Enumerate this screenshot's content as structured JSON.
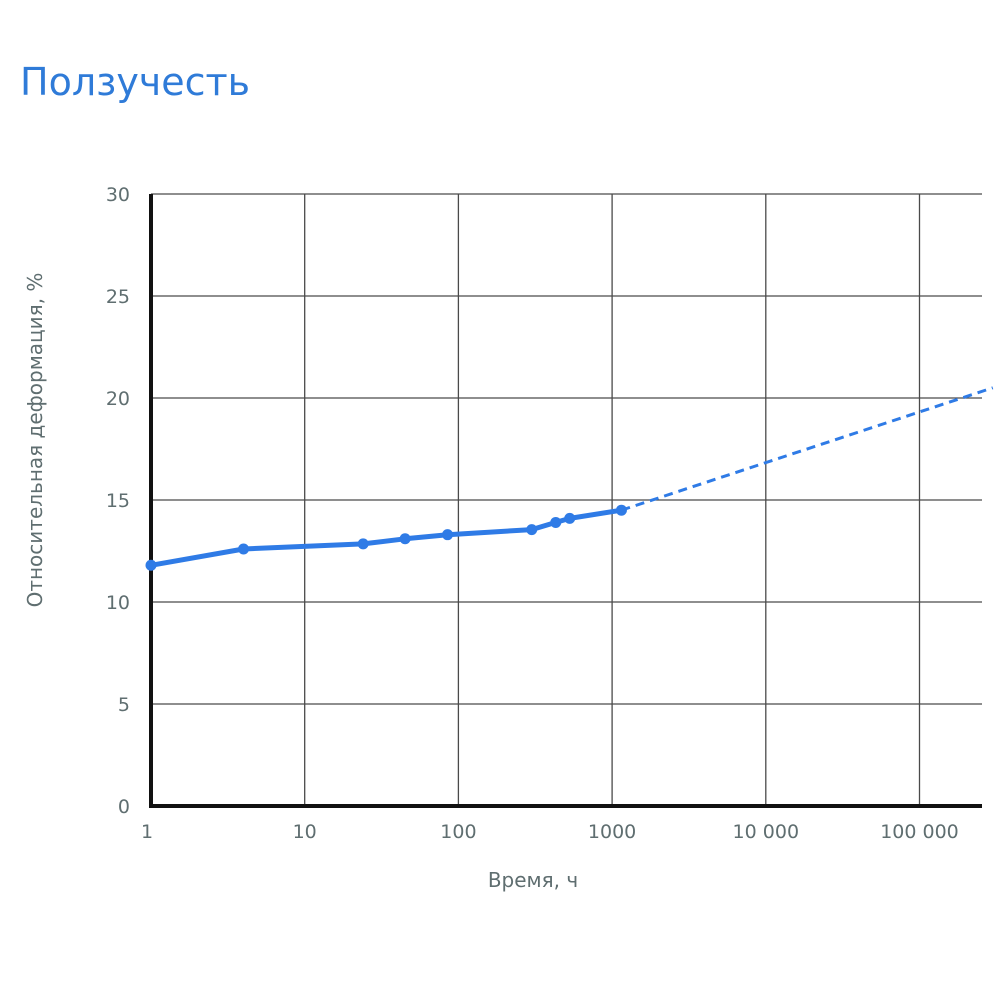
{
  "title": "Ползучесть",
  "chart_data": {
    "type": "line",
    "title": "Ползучесть",
    "xlabel": "Время, ч",
    "ylabel": "Относительная деформация, %",
    "x_scale": "log",
    "xlim": [
      1,
      300000
    ],
    "ylim": [
      0,
      30
    ],
    "grid": true,
    "x_ticks": [
      {
        "value": 1,
        "label": "1"
      },
      {
        "value": 10,
        "label": "10"
      },
      {
        "value": 100,
        "label": "100"
      },
      {
        "value": 1000,
        "label": "1000"
      },
      {
        "value": 10000,
        "label": "10 000"
      },
      {
        "value": 100000,
        "label": "100 000"
      }
    ],
    "y_ticks": [
      {
        "value": 0,
        "label": "0"
      },
      {
        "value": 5,
        "label": "5"
      },
      {
        "value": 10,
        "label": "10"
      },
      {
        "value": 15,
        "label": "15"
      },
      {
        "value": 20,
        "label": "20"
      },
      {
        "value": 25,
        "label": "25"
      },
      {
        "value": 30,
        "label": "30"
      }
    ],
    "series": [
      {
        "style": "solid-with-markers",
        "color": "#2f7be6",
        "points": [
          {
            "x": 1,
            "y": 11.8
          },
          {
            "x": 4,
            "y": 12.6
          },
          {
            "x": 24,
            "y": 12.85
          },
          {
            "x": 45,
            "y": 13.1
          },
          {
            "x": 85,
            "y": 13.3
          },
          {
            "x": 300,
            "y": 13.55
          },
          {
            "x": 430,
            "y": 13.9
          },
          {
            "x": 530,
            "y": 14.1
          },
          {
            "x": 1150,
            "y": 14.5
          }
        ]
      },
      {
        "style": "dashed",
        "color": "#2f7be6",
        "points": [
          {
            "x": 1150,
            "y": 14.5
          },
          {
            "x": 300000,
            "y": 20.5
          }
        ]
      }
    ]
  }
}
